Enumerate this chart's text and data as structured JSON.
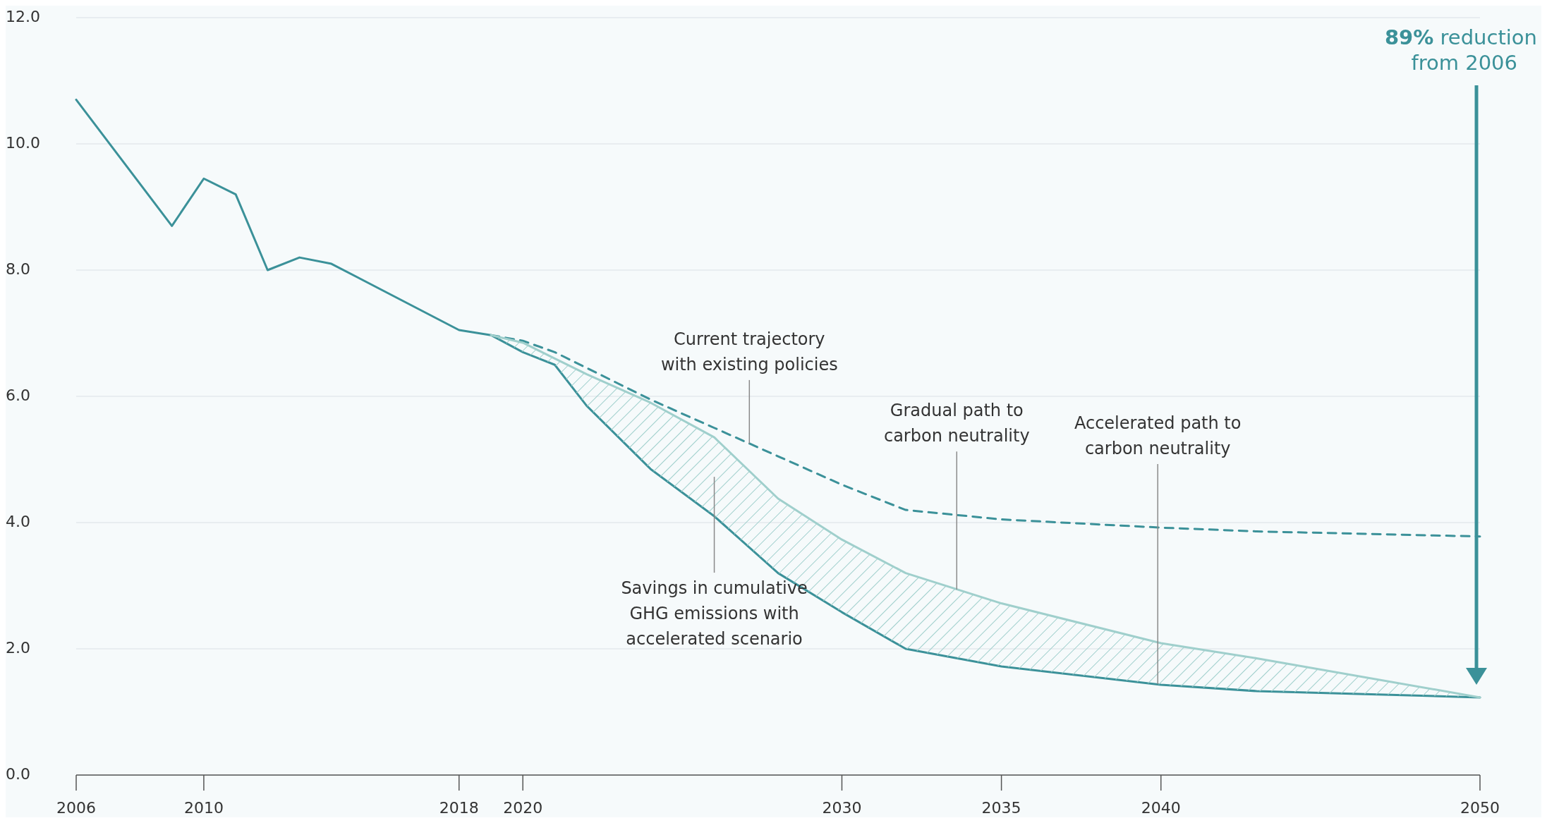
{
  "chart_data": {
    "type": "line",
    "xlim": [
      2006,
      2050
    ],
    "ylim": [
      0,
      12
    ],
    "xticks": [
      2006,
      2010,
      2018,
      2020,
      2030,
      2035,
      2040,
      2050
    ],
    "yticks": [
      {
        "value": 0,
        "label": "0.0"
      },
      {
        "value": 2,
        "label": "2.0"
      },
      {
        "value": 4,
        "label": "4.0"
      },
      {
        "value": 6,
        "label": "6.0"
      },
      {
        "value": 8,
        "label": "8.0"
      },
      {
        "value": 10,
        "label": "10.0"
      },
      {
        "value": 12,
        "label": "12.0"
      }
    ],
    "grid": "y",
    "series": [
      {
        "color": "#3b9199",
        "x": [
          2006,
          2009,
          2010,
          2011,
          2012,
          2013,
          2014,
          2018,
          2019,
          2020,
          2021,
          2022,
          2024,
          2026,
          2028,
          2030,
          2032,
          2035,
          2040,
          2043,
          2050
        ],
        "values": [
          10.7,
          8.7,
          9.45,
          9.2,
          8.0,
          8.2,
          8.1,
          7.05,
          6.97,
          6.7,
          6.5,
          5.85,
          4.85,
          4.1,
          3.2,
          2.58,
          2.0,
          1.72,
          1.43,
          1.33,
          1.23
        ]
      },
      {
        "color": "#3b9199",
        "line_style": "dashed",
        "x": [
          2019,
          2020,
          2021,
          2022,
          2024,
          2026,
          2028,
          2030,
          2032,
          2035,
          2040,
          2043,
          2050
        ],
        "values": [
          6.97,
          6.88,
          6.7,
          6.45,
          5.95,
          5.5,
          5.05,
          4.6,
          4.2,
          4.05,
          3.92,
          3.86,
          3.78
        ]
      },
      {
        "color": "#9fcfcc",
        "x": [
          2019,
          2020,
          2021,
          2022,
          2024,
          2026,
          2028,
          2030,
          2032,
          2035,
          2040,
          2043,
          2050
        ],
        "values": [
          6.97,
          6.85,
          6.6,
          6.35,
          5.9,
          5.35,
          4.38,
          3.73,
          3.2,
          2.72,
          2.09,
          1.85,
          1.23
        ],
        "upper": [
          6.97,
          6.85,
          6.6,
          6.35,
          5.9,
          5.35,
          4.38,
          3.73,
          3.2,
          2.72,
          2.09,
          1.85,
          1.23
        ],
        "lower": [
          6.97,
          6.7,
          6.5,
          5.85,
          4.85,
          4.1,
          3.2,
          2.58,
          2.0,
          1.72,
          1.43,
          1.33,
          1.23
        ]
      }
    ],
    "annotations": [
      {
        "text": "Current trajectory\nwith existing policies",
        "x": 2027.1,
        "y": 5.25
      },
      {
        "text": "Gradual path to\ncarbon neutrality",
        "x": 2033.6,
        "y": 2.94
      },
      {
        "text": "Accelerated path to\ncarbon neutrality",
        "x": 2039.9,
        "y": 1.44
      },
      "Savings in cumulative\nGHG emissions with\naccelerated scenario",
      "89% reduction\nfrom 2006"
    ]
  }
}
